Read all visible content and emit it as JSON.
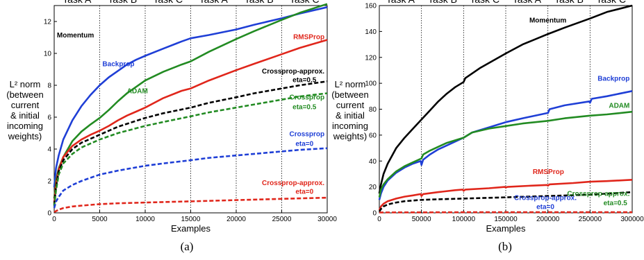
{
  "colors": {
    "Momentum": "#000000",
    "Backprop": "#1f3fd6",
    "ADAM": "#228b22",
    "RMSProp": "#e0261b",
    "Crossprop-approx. eta=0.5": "#000000",
    "Crossprop eta=0.5": "#228b22",
    "Crossprop eta=0": "#1f3fd6",
    "Crossprop-approx. eta=0": "#e0261b"
  },
  "chart_data": [
    {
      "type": "line",
      "caption": "(a)",
      "xlabel": "Examples",
      "ylabel_lines": [
        "L² norm",
        "(between",
        "current",
        "& initial",
        "incoming",
        "weights)"
      ],
      "xlim": [
        0,
        30000
      ],
      "ylim": [
        0,
        13
      ],
      "xticks": [
        0,
        5000,
        10000,
        15000,
        20000,
        25000,
        30000
      ],
      "yticks": [
        0,
        2,
        4,
        6,
        8,
        10,
        12
      ],
      "grid": false,
      "task_boundaries": [
        5000,
        10000,
        15000,
        20000,
        25000
      ],
      "task_labels": [
        "Task A",
        "Task B",
        "Task C",
        "Task A",
        "Task B",
        "Task C"
      ],
      "series": [
        {
          "name": "Backprop",
          "dashed": false,
          "x": [
            0,
            200,
            500,
            1000,
            2000,
            3000,
            4000,
            5000,
            6000,
            7000,
            8000,
            9000,
            10000,
            12000,
            14000,
            15000,
            17000,
            20000,
            22000,
            25000,
            27000,
            30000
          ],
          "values": [
            1.6,
            2.8,
            3.6,
            4.6,
            5.8,
            6.7,
            7.4,
            8.0,
            8.5,
            8.9,
            9.3,
            9.6,
            9.85,
            10.3,
            10.75,
            10.95,
            11.15,
            11.5,
            11.8,
            12.2,
            12.5,
            12.9
          ]
        },
        {
          "name": "ADAM",
          "dashed": false,
          "x": [
            0,
            200,
            500,
            1000,
            2000,
            3000,
            4000,
            5000,
            6000,
            7000,
            8000,
            9000,
            10000,
            12000,
            14000,
            15000,
            17000,
            20000,
            22000,
            25000,
            27000,
            30000
          ],
          "values": [
            0.9,
            2.0,
            2.8,
            3.5,
            4.5,
            5.1,
            5.55,
            5.95,
            6.45,
            7.0,
            7.5,
            7.9,
            8.3,
            8.85,
            9.3,
            9.5,
            10.1,
            10.9,
            11.4,
            12.1,
            12.55,
            13.1
          ]
        },
        {
          "name": "RMSProp",
          "dashed": false,
          "x": [
            0,
            200,
            500,
            1000,
            2000,
            3000,
            4000,
            5000,
            6000,
            7000,
            8000,
            9000,
            10000,
            12000,
            14000,
            15000,
            17000,
            20000,
            22000,
            25000,
            27000,
            30000
          ],
          "values": [
            0.6,
            1.8,
            2.7,
            3.5,
            4.2,
            4.6,
            4.9,
            5.15,
            5.45,
            5.8,
            6.1,
            6.35,
            6.6,
            7.2,
            7.65,
            7.8,
            8.3,
            8.95,
            9.35,
            9.95,
            10.35,
            10.85
          ]
        },
        {
          "name": "Crossprop-approx. eta=0.5",
          "dashed": true,
          "x": [
            0,
            200,
            500,
            1000,
            2000,
            3000,
            4000,
            5000,
            7000,
            10000,
            12000,
            15000,
            17000,
            20000,
            22000,
            25000,
            27000,
            30000
          ],
          "values": [
            0.5,
            1.6,
            2.6,
            3.3,
            4.0,
            4.4,
            4.65,
            4.9,
            5.4,
            5.95,
            6.25,
            6.6,
            6.9,
            7.25,
            7.5,
            7.8,
            8.0,
            8.25
          ]
        },
        {
          "name": "Crossprop eta=0.5",
          "dashed": true,
          "x": [
            0,
            200,
            500,
            1000,
            2000,
            3000,
            4000,
            5000,
            7000,
            10000,
            12000,
            15000,
            17000,
            20000,
            22000,
            25000,
            27000,
            30000
          ],
          "values": [
            0.4,
            1.4,
            2.4,
            3.1,
            3.7,
            4.1,
            4.35,
            4.6,
            5.0,
            5.45,
            5.7,
            6.05,
            6.3,
            6.6,
            6.8,
            7.1,
            7.3,
            7.5
          ]
        },
        {
          "name": "Crossprop eta=0",
          "dashed": true,
          "x": [
            0,
            200,
            500,
            1000,
            2000,
            3000,
            4000,
            5000,
            7000,
            10000,
            12000,
            15000,
            17000,
            20000,
            22000,
            25000,
            27000,
            30000
          ],
          "values": [
            0.3,
            0.7,
            1.0,
            1.4,
            1.75,
            2.0,
            2.2,
            2.4,
            2.65,
            2.95,
            3.1,
            3.3,
            3.45,
            3.6,
            3.7,
            3.85,
            3.95,
            4.05
          ]
        },
        {
          "name": "Crossprop-approx. eta=0",
          "dashed": true,
          "x": [
            0,
            500,
            1000,
            2000,
            3000,
            5000,
            7000,
            10000,
            15000,
            20000,
            25000,
            30000
          ],
          "values": [
            0.05,
            0.2,
            0.3,
            0.4,
            0.45,
            0.55,
            0.6,
            0.65,
            0.72,
            0.8,
            0.88,
            0.95
          ]
        }
      ],
      "annotations": [
        {
          "text": "Momentum",
          "color": "#000000",
          "x": 300,
          "y": 11.0,
          "anchor": "start"
        },
        {
          "text": "Backprop",
          "color": "#1f3fd6",
          "x": 5300,
          "y": 9.2,
          "anchor": "start"
        },
        {
          "text": "ADAM",
          "color": "#228b22",
          "x": 8000,
          "y": 7.5,
          "anchor": "start"
        },
        {
          "text": "RMSProp",
          "color": "#e0261b",
          "x": 29700,
          "y": 10.9,
          "anchor": "end"
        },
        {
          "text": "Crossprop-approx.",
          "color": "#000000",
          "x": 29700,
          "y": 8.75,
          "anchor": "end"
        },
        {
          "text": "eta=0.5",
          "color": "#000000",
          "x": 27500,
          "y": 8.2,
          "anchor": "middle"
        },
        {
          "text": "Crossprop",
          "color": "#228b22",
          "x": 29700,
          "y": 7.1,
          "anchor": "end"
        },
        {
          "text": "eta=0.5",
          "color": "#228b22",
          "x": 27500,
          "y": 6.5,
          "anchor": "middle"
        },
        {
          "text": "Crossprop",
          "color": "#1f3fd6",
          "x": 29700,
          "y": 4.8,
          "anchor": "end"
        },
        {
          "text": "eta=0",
          "color": "#1f3fd6",
          "x": 27500,
          "y": 4.2,
          "anchor": "middle"
        },
        {
          "text": "Crossprop-approx.",
          "color": "#e0261b",
          "x": 29700,
          "y": 1.75,
          "anchor": "end"
        },
        {
          "text": "eta=0",
          "color": "#e0261b",
          "x": 27500,
          "y": 1.2,
          "anchor": "middle"
        }
      ]
    },
    {
      "type": "line",
      "caption": "(b)",
      "xlabel": "Examples",
      "ylabel_lines": [
        "L² norm",
        "(between",
        "current",
        "& initial",
        "incoming",
        "weights)"
      ],
      "xlim": [
        0,
        300000
      ],
      "ylim": [
        0,
        160
      ],
      "xticks": [
        0,
        50000,
        100000,
        150000,
        200000,
        250000,
        300000
      ],
      "yticks": [
        0,
        20,
        40,
        60,
        80,
        100,
        120,
        140,
        160
      ],
      "grid": false,
      "task_boundaries": [
        50000,
        100000,
        150000,
        200000,
        250000
      ],
      "task_labels": [
        "Task A",
        "Task B",
        "Task C",
        "Task A",
        "Task B",
        "Task C"
      ],
      "series": [
        {
          "name": "Momentum",
          "dashed": false,
          "x": [
            0,
            2000,
            5000,
            10000,
            20000,
            30000,
            40000,
            50000,
            60000,
            70000,
            80000,
            90000,
            100000,
            102000,
            120000,
            150000,
            170000,
            200000,
            220000,
            250000,
            270000,
            300000
          ],
          "values": [
            15,
            22,
            30,
            38,
            50,
            58,
            65,
            72,
            79,
            86,
            92,
            97,
            101,
            104,
            112,
            123,
            130,
            138,
            143,
            150,
            155,
            160
          ]
        },
        {
          "name": "Backprop",
          "dashed": false,
          "x": [
            0,
            2000,
            5000,
            10000,
            20000,
            30000,
            40000,
            49000,
            50000,
            52000,
            60000,
            70000,
            80000,
            90000,
            100000,
            110000,
            130000,
            150000,
            170000,
            199000,
            200000,
            202000,
            220000,
            249000,
            250000,
            252000,
            270000,
            300000
          ],
          "values": [
            10,
            15,
            20,
            25,
            31,
            35,
            38,
            40,
            37,
            41,
            45,
            49,
            52,
            55,
            58,
            62,
            66,
            70,
            73,
            77,
            77,
            80,
            83,
            86,
            85,
            88,
            90,
            94
          ]
        },
        {
          "name": "ADAM",
          "dashed": false,
          "x": [
            0,
            2000,
            5000,
            10000,
            20000,
            30000,
            40000,
            50000,
            52000,
            60000,
            70000,
            80000,
            90000,
            100000,
            110000,
            130000,
            150000,
            170000,
            200000,
            220000,
            250000,
            270000,
            300000
          ],
          "values": [
            12,
            18,
            22,
            26,
            32,
            36,
            39,
            42,
            45,
            48,
            51,
            54,
            56,
            58,
            62,
            65,
            67,
            69,
            71,
            73,
            75,
            76,
            78
          ]
        },
        {
          "name": "RMSProp",
          "dashed": false,
          "x": [
            0,
            2000,
            5000,
            10000,
            20000,
            30000,
            40000,
            49000,
            50000,
            52000,
            70000,
            90000,
            99000,
            100000,
            102000,
            130000,
            149000,
            150000,
            152000,
            180000,
            199000,
            200000,
            202000,
            230000,
            250000,
            270000,
            300000
          ],
          "values": [
            2,
            5,
            7,
            9,
            11,
            12.5,
            13.5,
            14.5,
            13,
            14.5,
            16,
            17.5,
            18,
            17,
            18,
            19,
            20,
            19.5,
            20,
            21,
            21.5,
            21,
            22,
            23,
            24,
            24.5,
            25.5
          ]
        },
        {
          "name": "Crossprop-approx. eta=0.5",
          "dashed": true,
          "x": [
            0,
            2000,
            5000,
            10000,
            20000,
            30000,
            50000,
            70000,
            100000,
            150000,
            200000,
            250000,
            300000
          ],
          "values": [
            1,
            3,
            5,
            6.5,
            8,
            9,
            10,
            10.5,
            11,
            12,
            13,
            14,
            16
          ]
        },
        {
          "name": "Crossprop-approx. eta=0",
          "dashed": true,
          "x": [
            0,
            50000,
            100000,
            150000,
            200000,
            250000,
            300000
          ],
          "values": [
            0.3,
            0.4,
            0.5,
            0.5,
            0.5,
            0.5,
            0.5
          ]
        }
      ],
      "annotations": [
        {
          "text": "Momentum",
          "color": "#000000",
          "x": 178000,
          "y": 147,
          "anchor": "start"
        },
        {
          "text": "Backprop",
          "color": "#1f3fd6",
          "x": 297000,
          "y": 102,
          "anchor": "end"
        },
        {
          "text": "ADAM",
          "color": "#228b22",
          "x": 297000,
          "y": 81,
          "anchor": "end"
        },
        {
          "text": "RMSProp",
          "color": "#e0261b",
          "x": 182000,
          "y": 30,
          "anchor": "start"
        },
        {
          "text": "Crossprop-approx.",
          "color": "#1f3fd6",
          "x": 197000,
          "y": 10,
          "anchor": "middle"
        },
        {
          "text": "eta=0",
          "color": "#1f3fd6",
          "x": 197000,
          "y": 3,
          "anchor": "middle"
        },
        {
          "text": "Crossprop-approx.",
          "color": "#228b22",
          "x": 297000,
          "y": 13,
          "anchor": "end"
        },
        {
          "text": "eta=0.5",
          "color": "#228b22",
          "x": 280000,
          "y": 6,
          "anchor": "middle"
        }
      ]
    }
  ]
}
